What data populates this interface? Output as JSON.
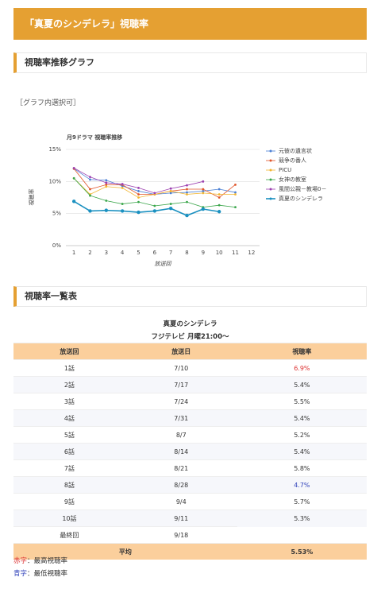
{
  "header": {
    "title": "「真夏のシンデレラ」視聴率"
  },
  "sections": [
    "視聴率推移グラフ",
    "視聴率一覧表"
  ],
  "note": "［グラフ内選択可］",
  "chart_data": {
    "type": "line",
    "title": "月9ドラマ 視聴率推移",
    "y_label": "視聴率",
    "x_label": "放送回",
    "categories": [
      1,
      2,
      3,
      4,
      5,
      6,
      7,
      8,
      9,
      10,
      11,
      12
    ],
    "ylim": [
      0,
      15
    ],
    "yticks": [
      {
        "value": 0,
        "label": "0%"
      },
      {
        "value": 5,
        "label": "5%"
      },
      {
        "value": 10,
        "label": "10%"
      },
      {
        "value": 15,
        "label": "15%"
      }
    ],
    "grid": true,
    "series": [
      {
        "name": "元彼の遺言状",
        "color": "#4a7fd4",
        "values": [
          12.0,
          10.3,
          10.2,
          9.3,
          8.5,
          8.0,
          8.2,
          8.3,
          8.5,
          8.8,
          8.3,
          null
        ]
      },
      {
        "name": "競争の番人",
        "color": "#e0552a",
        "values": [
          12.0,
          8.8,
          9.5,
          9.5,
          8.0,
          8.0,
          8.5,
          8.8,
          8.8,
          7.5,
          9.5,
          null
        ]
      },
      {
        "name": "PICU",
        "color": "#f2b632",
        "values": [
          10.5,
          8.0,
          9.2,
          9.0,
          7.5,
          8.0,
          8.5,
          8.0,
          8.2,
          8.0,
          8.0,
          null
        ]
      },
      {
        "name": "女神の教室",
        "color": "#3aa64a",
        "values": [
          10.5,
          7.8,
          7.0,
          6.5,
          6.8,
          6.2,
          6.5,
          6.8,
          6.0,
          6.3,
          6.0,
          null
        ]
      },
      {
        "name": "風間公親－教場0－",
        "color": "#9c3fb0",
        "values": [
          12.1,
          10.7,
          9.8,
          9.6,
          9.0,
          8.2,
          8.9,
          9.4,
          10.0,
          null,
          null,
          null
        ]
      },
      {
        "name": "真夏のシンデレラ",
        "color": "#1a90c0",
        "values": [
          6.9,
          5.4,
          5.5,
          5.4,
          5.2,
          5.4,
          5.8,
          4.7,
          5.7,
          5.3,
          null,
          null
        ]
      }
    ]
  },
  "table": {
    "title": "真夏のシンデレラ",
    "subtitle": "フジテレビ 月曜21:00～",
    "headers": [
      "放送回",
      "放送日",
      "視聴率"
    ],
    "rows": [
      {
        "cells": [
          "1話",
          "7/10",
          "6.9%"
        ],
        "color": "#d33"
      },
      {
        "cells": [
          "2話",
          "7/17",
          "5.4%"
        ]
      },
      {
        "cells": [
          "3話",
          "7/24",
          "5.5%"
        ]
      },
      {
        "cells": [
          "4話",
          "7/31",
          "5.4%"
        ]
      },
      {
        "cells": [
          "5話",
          "8/7",
          "5.2%"
        ]
      },
      {
        "cells": [
          "6話",
          "8/14",
          "5.4%"
        ]
      },
      {
        "cells": [
          "7話",
          "8/21",
          "5.8%"
        ]
      },
      {
        "cells": [
          "8話",
          "8/28",
          "4.7%"
        ],
        "color": "#3344bb"
      },
      {
        "cells": [
          "9話",
          "9/4",
          "5.7%"
        ]
      },
      {
        "cells": [
          "10話",
          "9/11",
          "5.3%"
        ]
      },
      {
        "cells": [
          "最終回",
          "9/18"
        ]
      }
    ],
    "average": [
      "平均",
      "5.53%"
    ]
  },
  "footnotes": [
    {
      "key": "赤字",
      "text": "：最高視聴率",
      "color": "#d33"
    },
    {
      "key": "青字",
      "text": "：最低視聴率",
      "color": "#3344bb"
    }
  ]
}
